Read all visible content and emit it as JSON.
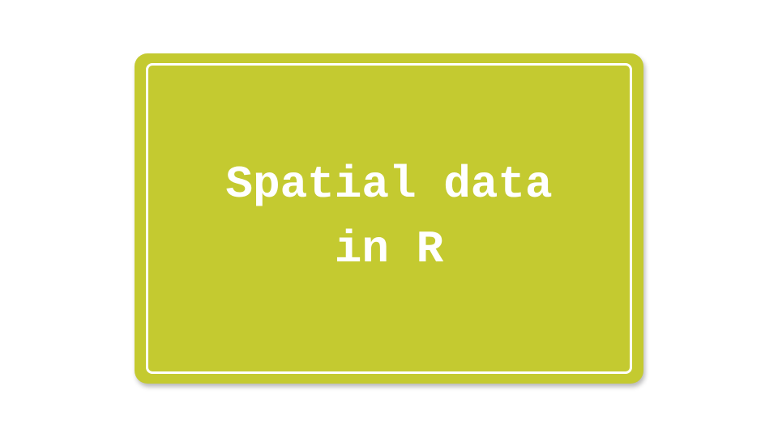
{
  "slide": {
    "title_line1": "Spatial data",
    "title_line2": "in R"
  },
  "colors": {
    "background": "#ffffff",
    "card": "#c4ca30",
    "text": "#ffffff",
    "border": "#ffffff"
  }
}
